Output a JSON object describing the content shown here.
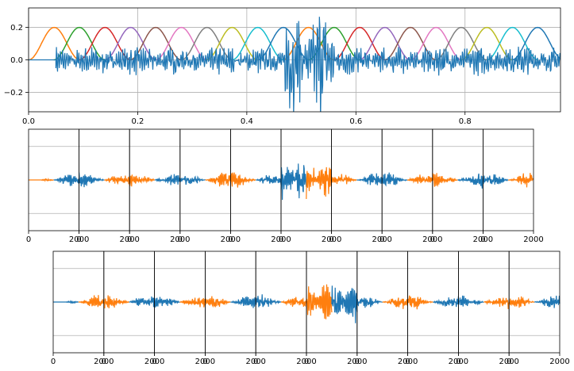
{
  "chart_data": [
    {
      "type": "line",
      "title": "",
      "xlabel": "",
      "ylabel": "",
      "xlim": [
        0,
        0.975
      ],
      "ylim": [
        -0.32,
        0.32
      ],
      "grid": true,
      "xticks": [
        "0.0",
        "0.2",
        "0.4",
        "0.6",
        "0.8"
      ],
      "xtick_values": [
        0,
        0.2,
        0.4,
        0.6,
        0.8
      ],
      "yticks": [
        "0.2",
        "0.0",
        "−0.2"
      ],
      "ytick_values": [
        0.2,
        0,
        -0.2
      ],
      "window_amplitude": 0.2,
      "window_centers": [
        0.047,
        0.093,
        0.14,
        0.187,
        0.233,
        0.28,
        0.327,
        0.373,
        0.42,
        0.467,
        0.513,
        0.56,
        0.607,
        0.653,
        0.7,
        0.747,
        0.793,
        0.84,
        0.887,
        0.933
      ],
      "window_colors": [
        "#ff7f0e",
        "#2ca02c",
        "#d62728",
        "#9467bd",
        "#8c564b",
        "#e377c2",
        "#7f7f7f",
        "#bcbd22",
        "#17becf",
        "#1f77b4"
      ],
      "signal_color": "#1f77b4",
      "signal_start": 0.05
    },
    {
      "type": "line",
      "title": "",
      "xlabel": "",
      "ylabel": "",
      "segments": 10,
      "segment_xlim": [
        0,
        2000
      ],
      "xticks": [
        "0",
        "2000",
        "0",
        "2000",
        "0",
        "2000",
        "0",
        "2000",
        "0",
        "2000",
        "0",
        "2000",
        "0",
        "2000",
        "0",
        "2000",
        "0",
        "2000",
        "0",
        "2000"
      ],
      "series_colors": [
        "#ff7f0e",
        "#1f77b4"
      ],
      "grid": true
    },
    {
      "type": "line",
      "title": "",
      "xlabel": "",
      "ylabel": "",
      "segments": 10,
      "segment_xlim": [
        0,
        2000
      ],
      "xticks": [
        "0",
        "2000",
        "0",
        "2000",
        "0",
        "2000",
        "0",
        "2000",
        "0",
        "2000",
        "0",
        "2000",
        "0",
        "2000",
        "0",
        "2000",
        "0",
        "2000",
        "0",
        "2000"
      ],
      "series_colors": [
        "#1f77b4",
        "#ff7f0e"
      ],
      "grid": true
    }
  ]
}
